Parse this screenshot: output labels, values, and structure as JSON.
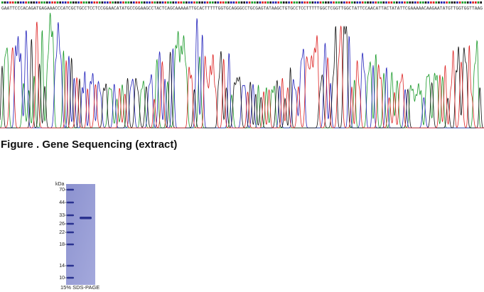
{
  "sequencing": {
    "sequence": "GAATTCCCACAGATGAGAAACCCATCGCTGCCTCCTCCGGAACATATGCCGGAAGCCTACTCAGCAAAAATTGCACTTTTTGGTGCAGGGCCTGCGAGTATAAGCTGTGCCTCCTTTTTGGCTCGGTTGGCTATTCCAACATTACTATATTCGAAAAACAAGAATATGTTGGTGGTTAAG",
    "caption": "Figure . Gene Sequencing (extract)"
  },
  "gel": {
    "unit": "kDa",
    "markers": [
      "70",
      "44",
      "33",
      "26",
      "22",
      "18",
      "14",
      "10"
    ],
    "caption": "15% SDS-PAGE"
  }
}
